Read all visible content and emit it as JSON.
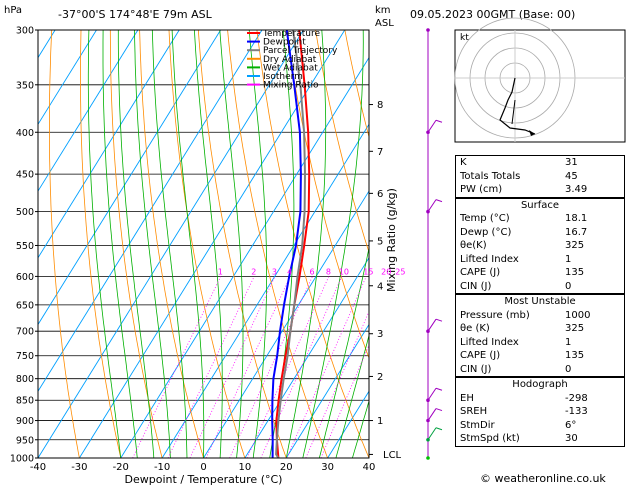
{
  "header": {
    "pressure_unit": "hPa",
    "location": "-37°00'S 174°48'E 79m ASL",
    "km_label": "km",
    "asl_label": "ASL",
    "datetime": "09.05.2023 00GMT (Base: 00)"
  },
  "legend": [
    {
      "label": "Temperature",
      "color": "#ff0000"
    },
    {
      "label": "Dewpoint",
      "color": "#0000ff"
    },
    {
      "label": "Parcel Trajectory",
      "color": "#808080"
    },
    {
      "label": "Dry Adiabat",
      "color": "#ff8c00"
    },
    {
      "label": "Wet Adiabat",
      "color": "#00b000"
    },
    {
      "label": "Isotherm",
      "color": "#00a0ff"
    },
    {
      "label": "Mixing Ratio",
      "color": "#ff00ff"
    }
  ],
  "chart_data": {
    "type": "line",
    "xlabel": "Dewpoint / Temperature (°C)",
    "ylabel_left": "hPa",
    "ylabel_right": "Mixing Ratio (g/kg)",
    "pressure_ticks": [
      300,
      350,
      400,
      450,
      500,
      550,
      600,
      650,
      700,
      750,
      800,
      850,
      900,
      950,
      1000
    ],
    "temp_ticks": [
      -40,
      -30,
      -20,
      -10,
      0,
      10,
      20,
      30,
      40
    ],
    "xlim": [
      -40,
      40
    ],
    "ylim": [
      1000,
      300
    ],
    "km_ticks": [
      {
        "label": "8",
        "p": 370
      },
      {
        "label": "7",
        "p": 422
      },
      {
        "label": "6",
        "p": 475
      },
      {
        "label": "5",
        "p": 543
      },
      {
        "label": "4",
        "p": 616
      },
      {
        "label": "3",
        "p": 705
      },
      {
        "label": "2",
        "p": 795
      },
      {
        "label": "1",
        "p": 900
      },
      {
        "label": "LCL",
        "p": 990
      }
    ],
    "mixing_ratio_labels": [
      {
        "label": "1",
        "w": 1
      },
      {
        "label": "2",
        "w": 2
      },
      {
        "label": "3",
        "w": 3
      },
      {
        "label": "4",
        "w": 4
      },
      {
        "label": "6",
        "w": 6
      },
      {
        "label": "8",
        "w": 8
      },
      {
        "label": "10",
        "w": 10
      },
      {
        "label": "15",
        "w": 15
      },
      {
        "label": "20",
        "w": 20
      },
      {
        "label": "25",
        "w": 25
      }
    ],
    "series": [
      {
        "name": "Temperature",
        "color": "#ff0000",
        "points": [
          [
            1000,
            18.1
          ],
          [
            950,
            15.0
          ],
          [
            900,
            12.0
          ],
          [
            850,
            9.5
          ],
          [
            800,
            7.0
          ],
          [
            750,
            4.5
          ],
          [
            700,
            2.0
          ],
          [
            650,
            -1.0
          ],
          [
            600,
            -4.0
          ],
          [
            550,
            -7.5
          ],
          [
            500,
            -11.5
          ],
          [
            450,
            -17.0
          ],
          [
            400,
            -23.5
          ],
          [
            350,
            -31.5
          ],
          [
            300,
            -41.0
          ]
        ]
      },
      {
        "name": "Dewpoint",
        "color": "#0000ff",
        "points": [
          [
            1000,
            16.7
          ],
          [
            950,
            14.0
          ],
          [
            900,
            11.0
          ],
          [
            850,
            8.0
          ],
          [
            800,
            5.0
          ],
          [
            750,
            2.5
          ],
          [
            700,
            -0.5
          ],
          [
            650,
            -3.5
          ],
          [
            600,
            -6.5
          ],
          [
            550,
            -9.5
          ],
          [
            500,
            -13.5
          ],
          [
            450,
            -19.0
          ],
          [
            400,
            -25.5
          ],
          [
            350,
            -34.0
          ],
          [
            300,
            -44.0
          ]
        ]
      },
      {
        "name": "Parcel Trajectory",
        "color": "#808080",
        "points": [
          [
            1000,
            18.1
          ],
          [
            990,
            17.0
          ],
          [
            950,
            15.0
          ],
          [
            900,
            12.5
          ],
          [
            850,
            10.0
          ],
          [
            800,
            7.5
          ],
          [
            750,
            5.0
          ],
          [
            700,
            2.0
          ],
          [
            650,
            -1.0
          ],
          [
            600,
            -4.5
          ],
          [
            550,
            -8.0
          ],
          [
            500,
            -12.5
          ],
          [
            450,
            -18.0
          ],
          [
            400,
            -24.5
          ],
          [
            350,
            -32.5
          ],
          [
            300,
            -42.5
          ]
        ]
      }
    ]
  },
  "hodograph": {
    "label": "kt"
  },
  "indices": [
    {
      "key": "K",
      "value": "31"
    },
    {
      "key": "Totals Totals",
      "value": "45"
    },
    {
      "key": "PW (cm)",
      "value": "3.49"
    }
  ],
  "surface": {
    "title": "Surface",
    "rows": [
      {
        "key": "Temp (°C)",
        "value": "18.1"
      },
      {
        "key": "Dewp (°C)",
        "value": "16.7"
      },
      {
        "key": "θe(K)",
        "value": "325"
      },
      {
        "key": "Lifted Index",
        "value": "1"
      },
      {
        "key": "CAPE (J)",
        "value": "135"
      },
      {
        "key": "CIN (J)",
        "value": "0"
      }
    ]
  },
  "most_unstable": {
    "title": "Most Unstable",
    "rows": [
      {
        "key": "Pressure (mb)",
        "value": "1000"
      },
      {
        "key": "θe (K)",
        "value": "325"
      },
      {
        "key": "Lifted Index",
        "value": "1"
      },
      {
        "key": "CAPE (J)",
        "value": "135"
      },
      {
        "key": "CIN (J)",
        "value": "0"
      }
    ]
  },
  "hodograph_table": {
    "title": "Hodograph",
    "rows": [
      {
        "key": "EH",
        "value": "-298"
      },
      {
        "key": "SREH",
        "value": "-133"
      },
      {
        "key": "StmDir",
        "value": "6°"
      },
      {
        "key": "StmSpd (kt)",
        "value": "30"
      }
    ]
  },
  "footer": {
    "copyright": "© weatheronline.co.uk"
  }
}
